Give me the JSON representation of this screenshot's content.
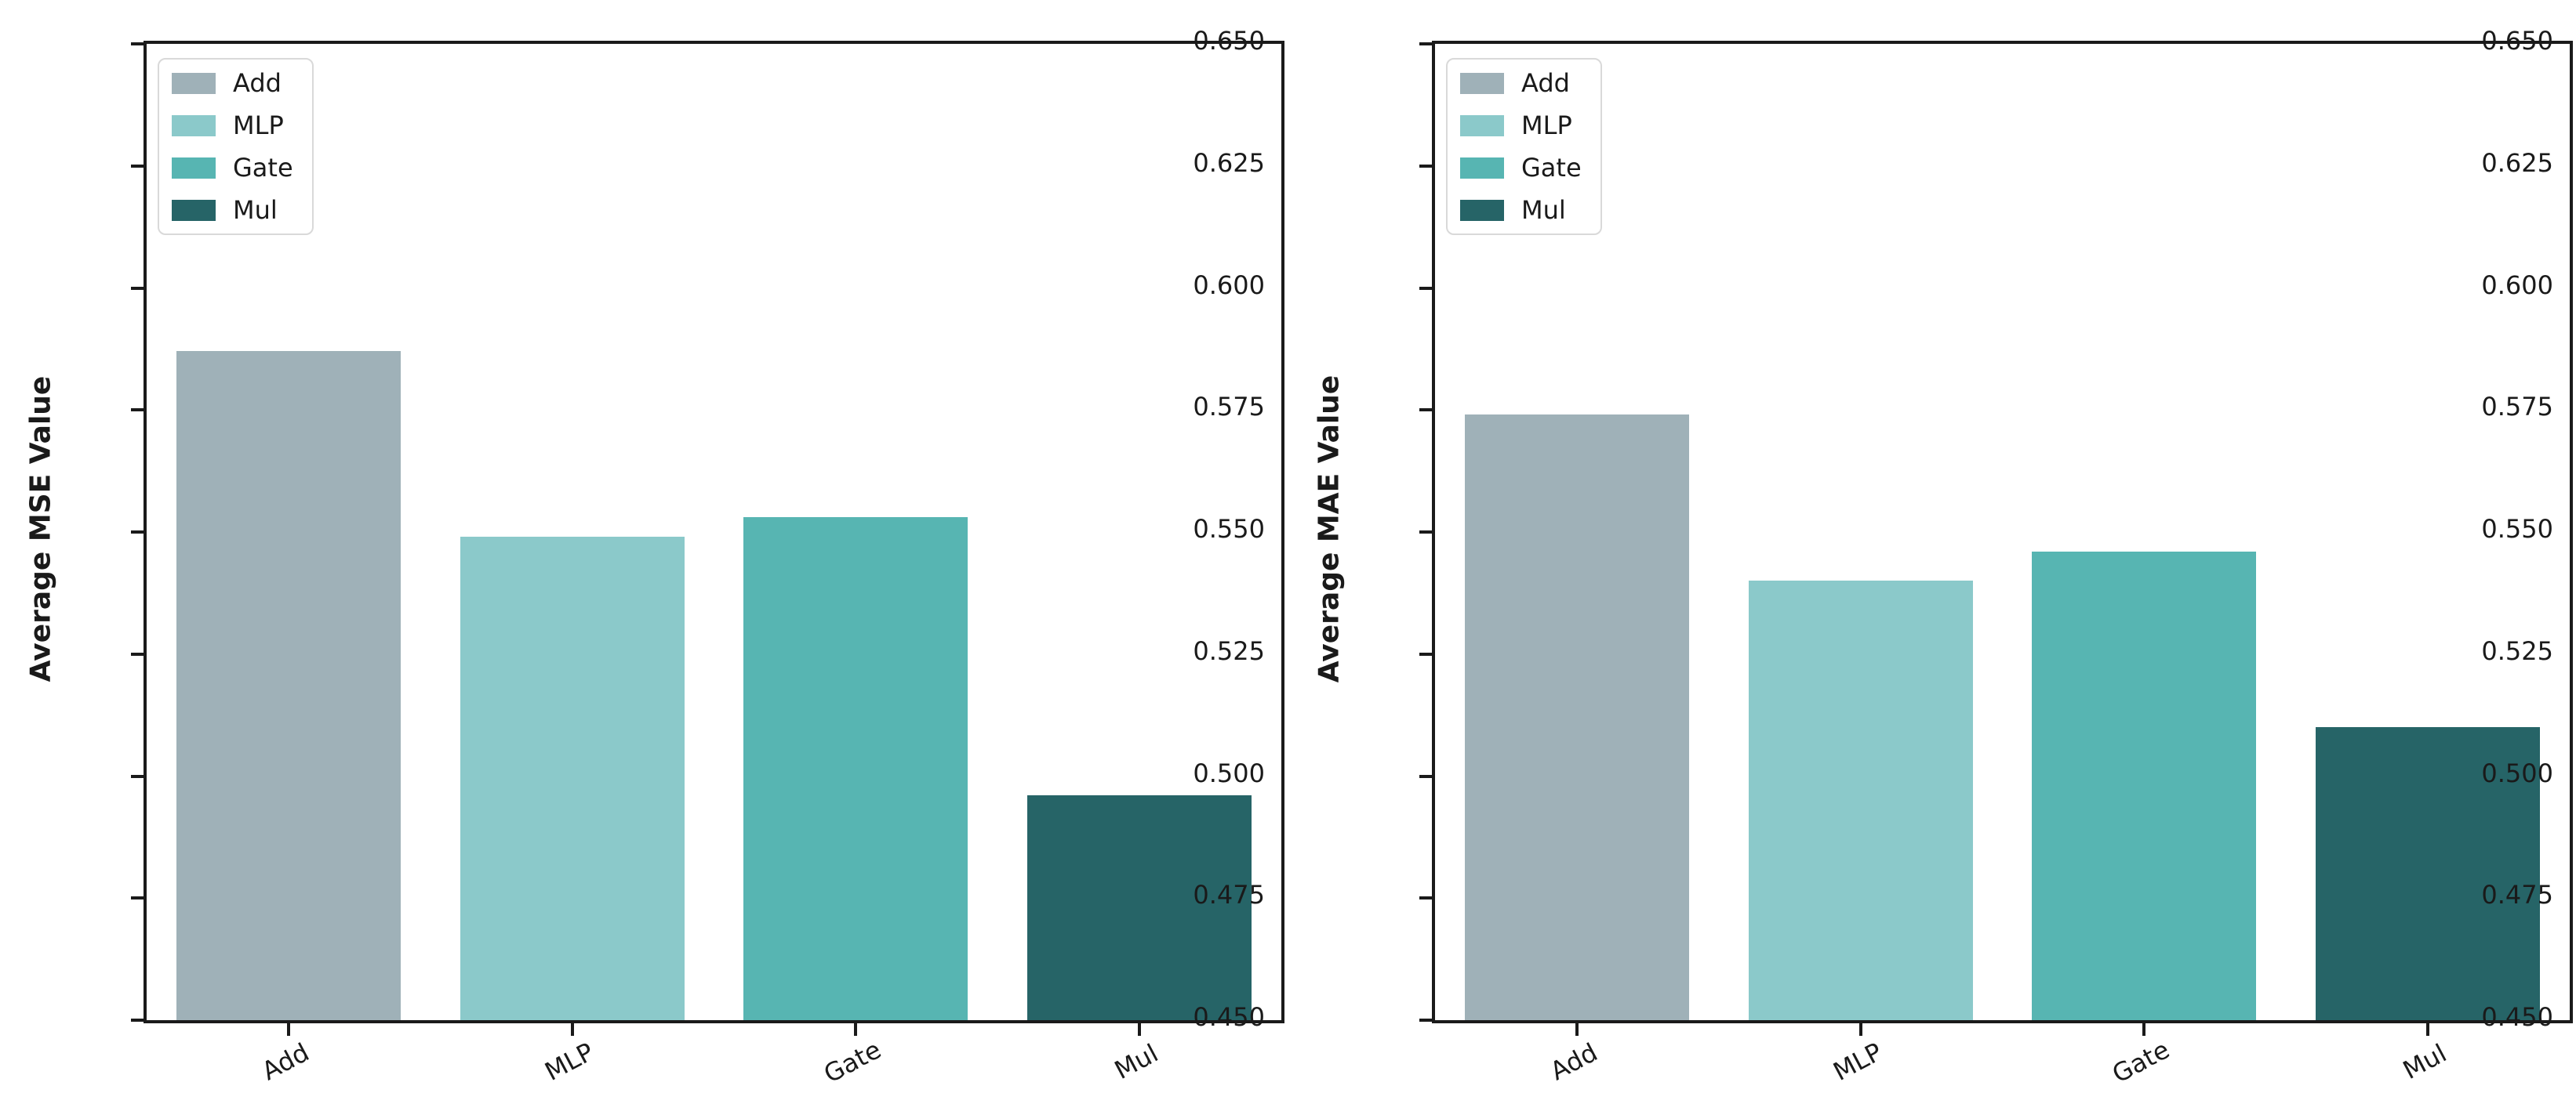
{
  "figure": {
    "background_color": "#ffffff",
    "axis_color": "#1a1a1a"
  },
  "chart_data": [
    {
      "type": "bar",
      "title": "",
      "categories": [
        "Add",
        "MLP",
        "Gate",
        "Mul"
      ],
      "values": [
        0.587,
        0.549,
        0.553,
        0.496
      ],
      "bar_colors": [
        "#9fb1b8",
        "#8bc9ca",
        "#57b5b2",
        "#266467"
      ],
      "xlabel": "",
      "ylabel": "Average MSE Value",
      "ylim": [
        0.45,
        0.65
      ],
      "ytick_step": 0.025,
      "ytick_labels": [
        "0.650",
        "0.625",
        "0.600",
        "0.575",
        "0.550",
        "0.525",
        "0.500",
        "0.475",
        "0.450"
      ],
      "grid": false,
      "xtick_rotation_deg": 28,
      "legend": {
        "position": "upper-left",
        "entries": [
          {
            "label": "Add",
            "color": "#9fb1b8"
          },
          {
            "label": "MLP",
            "color": "#8bc9ca"
          },
          {
            "label": "Gate",
            "color": "#57b5b2"
          },
          {
            "label": "Mul",
            "color": "#266467"
          }
        ]
      }
    },
    {
      "type": "bar",
      "title": "",
      "categories": [
        "Add",
        "MLP",
        "Gate",
        "Mul"
      ],
      "values": [
        0.574,
        0.54,
        0.546,
        0.51
      ],
      "bar_colors": [
        "#9fb1b8",
        "#8bc9ca",
        "#57b5b2",
        "#266467"
      ],
      "xlabel": "",
      "ylabel": "Average MAE Value",
      "ylim": [
        0.45,
        0.65
      ],
      "ytick_step": 0.025,
      "ytick_labels": [
        "0.650",
        "0.625",
        "0.600",
        "0.575",
        "0.550",
        "0.525",
        "0.500",
        "0.475",
        "0.450"
      ],
      "grid": false,
      "xtick_rotation_deg": 28,
      "legend": {
        "position": "upper-left",
        "entries": [
          {
            "label": "Add",
            "color": "#9fb1b8"
          },
          {
            "label": "MLP",
            "color": "#8bc9ca"
          },
          {
            "label": "Gate",
            "color": "#57b5b2"
          },
          {
            "label": "Mul",
            "color": "#266467"
          }
        ]
      }
    }
  ]
}
